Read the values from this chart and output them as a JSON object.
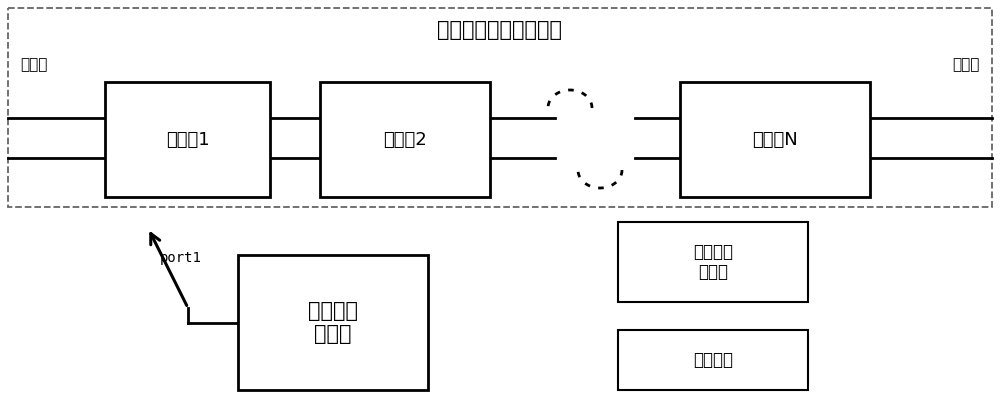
{
  "title": "两端口较远的互易馈线",
  "port1_label": "端口一",
  "port2_label": "端口二",
  "component_labels": [
    "元器件1",
    "元器件2",
    "元器件N"
  ],
  "vna_label": "矢量网络\n分析仪",
  "port1_connector": "port1",
  "legend1_label": "短路或开\n路模块",
  "legend2_label": "匹配负载",
  "bg_color": "#ffffff",
  "fig_w": 10.0,
  "fig_h": 4.04,
  "dpi": 100
}
